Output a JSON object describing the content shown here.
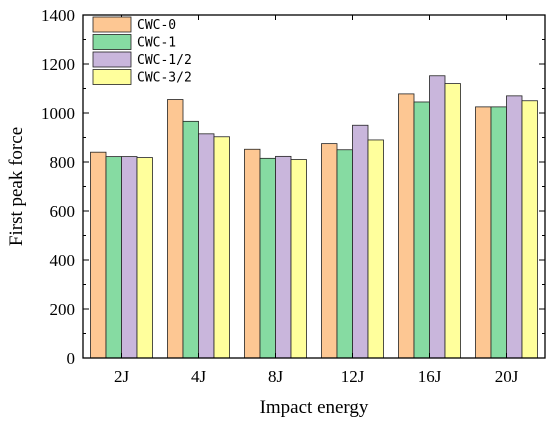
{
  "chart_data": {
    "type": "bar",
    "categories": [
      "2J",
      "4J",
      "8J",
      "12J",
      "16J",
      "20J"
    ],
    "series": [
      {
        "name": "CWC-0",
        "color": "#FDC793",
        "values": [
          840,
          1055,
          852,
          875,
          1078,
          1025
        ]
      },
      {
        "name": "CWC-1",
        "color": "#86DBA2",
        "values": [
          822,
          966,
          815,
          850,
          1045,
          1025
        ]
      },
      {
        "name": "CWC-1/2",
        "color": "#C9B6DC",
        "values": [
          822,
          915,
          823,
          950,
          1152,
          1070
        ]
      },
      {
        "name": "CWC-3/2",
        "color": "#FFFF9C",
        "values": [
          818,
          903,
          810,
          890,
          1120,
          1050
        ]
      }
    ],
    "xlabel": "Impact energy",
    "ylabel": "First peak force",
    "ylim": [
      0,
      1400
    ],
    "yticks": [
      0,
      200,
      400,
      600,
      800,
      1000,
      1200,
      1400
    ],
    "legend_position": "top-left",
    "grid": false
  }
}
